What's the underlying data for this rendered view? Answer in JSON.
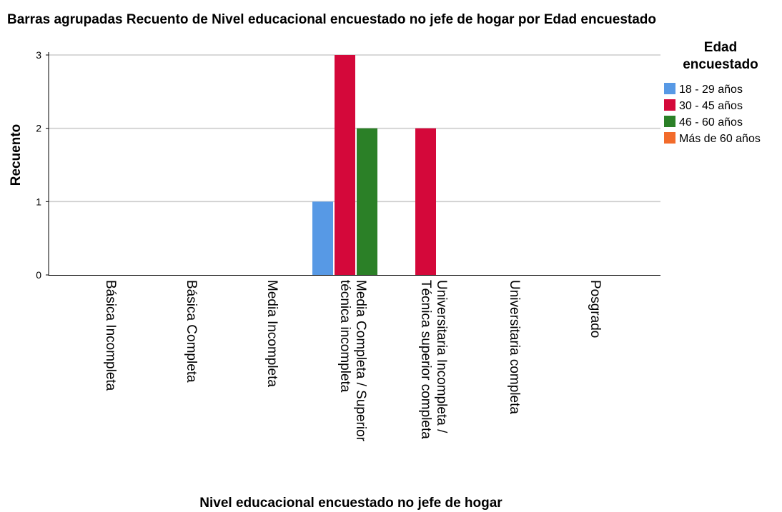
{
  "chart_data": {
    "type": "bar",
    "title": "Barras agrupadas Recuento de Nivel educacional encuestado no jefe de hogar por Edad encuestado",
    "xlabel": "Nivel educacional encuestado no jefe de hogar",
    "ylabel": "Recuento",
    "ylim": [
      0,
      3
    ],
    "yticks": [
      0,
      1,
      2,
      3
    ],
    "grid": true,
    "legend_position": "right",
    "legend_title_lines": [
      "Edad",
      "encuestado"
    ],
    "categories": [
      [
        "Básica Incompleta"
      ],
      [
        "Básica Completa"
      ],
      [
        "Media Incompleta"
      ],
      [
        "Media Completa / Superior",
        "técnica incompleta"
      ],
      [
        "Universitaria Incompleta /",
        "Técnica superior completa"
      ],
      [
        "Universitaria completa"
      ],
      [
        "Posgrado"
      ]
    ],
    "series": [
      {
        "name": "18 - 29 años",
        "color": "#5799e5",
        "values": [
          0,
          0,
          0,
          1,
          0,
          0,
          0
        ]
      },
      {
        "name": "30 - 45 años",
        "color": "#d4083a",
        "values": [
          0,
          0,
          0,
          3,
          2,
          0,
          0
        ]
      },
      {
        "name": "46 - 60 años",
        "color": "#2b8027",
        "values": [
          0,
          0,
          0,
          2,
          0,
          0,
          0
        ]
      },
      {
        "name": "Más de 60 años",
        "color": "#f26b2b",
        "values": [
          0,
          0,
          0,
          0,
          0,
          0,
          0
        ]
      }
    ]
  }
}
